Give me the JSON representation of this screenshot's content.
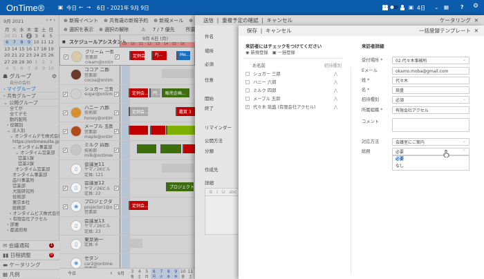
{
  "header": {
    "logo": "OnTime®",
    "today": "今日",
    "prev": "←",
    "next": "→",
    "range": "6日 - 2021年 9月 9日",
    "view": "4日",
    "help": "?",
    "colors": {
      "bar": "#0b5cad"
    }
  },
  "calendar": {
    "month": "9月 2021",
    "nav": "‹ • ›",
    "weekdays": [
      "月",
      "火",
      "水",
      "木",
      "金",
      "土",
      "日"
    ],
    "weeks": [
      [
        "30",
        "31",
        "1",
        "2",
        "3",
        "4",
        "5"
      ],
      [
        "6",
        "7",
        "8",
        "9",
        "10",
        "11",
        "12"
      ],
      [
        "13",
        "14",
        "15",
        "16",
        "17",
        "18",
        "19"
      ],
      [
        "20",
        "21",
        "22",
        "23",
        "24",
        "25",
        "26"
      ],
      [
        "27",
        "28",
        "29",
        "30",
        "1",
        "2",
        "3"
      ],
      [
        "4",
        "5",
        "6",
        "7",
        "8",
        "9",
        "10"
      ]
    ],
    "today": "2"
  },
  "groups": {
    "title": "グループ",
    "subtitle": "自分の会社",
    "tree": [
      "› マイグループ",
      "› 共有グループ",
      "⌄ 公開グループ",
      "全てが",
      "全てデモ",
      "動的配布",
      "› 役職別",
      "⌄ 法人別",
      "⌄ オンタイムデモ株式会社",
      "https://ontimesuite.jp/s...",
      "⌄ オンタイム事業部",
      "⌄ オンタイム営業部",
      "営業1課",
      "営業2課",
      "オンタイム営業部",
      "オンタイム事業部",
      "品川事業所",
      "営業部",
      "大阪研究所",
      "技術部",
      "東京本社",
      "総務部",
      "› オンタイムビズ株式会社",
      "› 有限会社アクセル",
      "› 部署",
      "› 都道府県"
    ]
  },
  "side_buttons": [
    {
      "label": "会議通知",
      "badge": "1"
    },
    {
      "label": "日程調整",
      "badge": "0"
    },
    {
      "label": "ケータリング"
    },
    {
      "label": "凡例"
    }
  ],
  "toolbar": {
    "row1": [
      "⊕ 新規イベント",
      "⊕ 共有歳の新規予約",
      "⊕ 新規メール",
      "⊕ PDF出力"
    ],
    "row2": [
      "⊕ 選択を表示",
      "⊕ 選択の解除"
    ],
    "count": "7 / 7 優先",
    "filter": "所要時間"
  },
  "schedule": {
    "title": "スケジュールアシスタント",
    "date": "9月 6日 (月)",
    "hours": [
      "09",
      "10",
      "11",
      "12",
      "13",
      "14",
      "15",
      "16"
    ],
    "rows": [
      {
        "name": "クリーム 一郎",
        "dept": "営業部",
        "mail": "cream@ontimede...",
        "checked": true,
        "events": [
          {
            "label": "定例会...",
            "color": "#c00000"
          },
          {
            "label": "Pj...",
            "color": "#c00000"
          },
          {
            "label": "Me...",
            "color": "#1a6fc0"
          }
        ]
      },
      {
        "name": "ココア 二郎",
        "dept": "営業部",
        "mail": "cocoa@ontimedem...",
        "checked": false,
        "events": []
      },
      {
        "name": "シュガー 三郎",
        "dept": "",
        "mail": "sugar@ontimedem...",
        "checked": true,
        "events": [
          {
            "label": "定例会...",
            "color": "#c00000"
          },
          {
            "label": "円...",
            "color": "#aaaaaa"
          },
          {
            "label": "販売企画...",
            "color": "#3c6e10"
          }
        ]
      },
      {
        "name": "ハニー 六郎",
        "dept": "技術部",
        "mail": "honey@ontimede...",
        "checked": true,
        "events": [
          {
            "label": "定例会...",
            "color": "#aaaaaa"
          },
          {
            "label": "鑑賞 3",
            "color": "#c00000"
          }
        ]
      },
      {
        "name": "メープル 五郎",
        "dept": "営業部",
        "mail": "maple@ontimede...",
        "checked": true,
        "events": [
          {
            "label": "",
            "color": "#c00000"
          },
          {
            "label": "",
            "color": "#c00000"
          },
          {
            "label": "",
            "color": "#7db000"
          }
        ]
      },
      {
        "name": "ミルク 四郎",
        "dept": "技術部",
        "mail": "milk@ontimedemo...",
        "checked": true,
        "events": [
          {
            "label": "",
            "color": "#3c6e10"
          },
          {
            "label": "",
            "color": "#3c6e10"
          },
          {
            "label": "",
            "color": "#c00000"
          }
        ]
      },
      {
        "name": "会議室11",
        "dept": "ヤマノ26ビル",
        "mail": "定員: 121",
        "checked": false,
        "events": []
      },
      {
        "name": "会議室12",
        "dept": "ヤマノ26ビル",
        "mail": "定員: 22",
        "checked": true,
        "events": [
          {
            "label": "プロジェクトX",
            "color": "#3c6e10"
          }
        ]
      },
      {
        "name": "プロジェクタ1",
        "dept": "projector1@ontime...",
        "mail": "営業部",
        "checked": true,
        "events": [
          {
            "label": "定例会...",
            "color": "#c00000"
          }
        ]
      },
      {
        "name": "会議室13",
        "dept": "ヤマノ26ビル",
        "mail": "定員: 23",
        "checked": false,
        "events": []
      },
      {
        "name": "東京第一",
        "dept": "",
        "mail": "定員: 6",
        "checked": false,
        "events": []
      },
      {
        "name": "セダン",
        "dept": "car2@ontimedemo...",
        "mail": "営業部",
        "checked": false,
        "events": []
      },
      {
        "name": "プロジェクタ2",
        "dept": "projector2@ontime...",
        "mail": "営業部",
        "checked": false,
        "events": []
      }
    ]
  },
  "footer": {
    "today": "今日",
    "prev": "‹",
    "month": "9月",
    "days": [
      [
        "3",
        "金"
      ],
      [
        "4",
        "土"
      ],
      [
        "5",
        "日"
      ],
      [
        "6",
        "月"
      ],
      [
        "7",
        "火"
      ],
      [
        "8",
        "水"
      ],
      [
        "9",
        "木"
      ],
      [
        "10",
        "金"
      ],
      [
        "11",
        "土"
      ]
    ]
  },
  "catering": {
    "actions": [
      "送信",
      "重複予定の確認",
      "キャンセル"
    ],
    "title": "ケータリング",
    "close": "✕",
    "labels": [
      "件名",
      "場所",
      "必須",
      "任意",
      "開始",
      "終了",
      "リマインダー",
      "公開方法",
      "分類",
      "作成先",
      "詳細"
    ],
    "editor": [
      "B",
      "I",
      "U",
      "abc"
    ]
  },
  "template": {
    "actions": [
      "保存",
      "キャンセル"
    ],
    "title": "一括登録テンプレート",
    "close": "✕",
    "list_title": "来訪者にはチェックをつけてください",
    "modes": [
      "新規登録",
      "一括登録"
    ],
    "col_name": "お名前",
    "col_type": "招待種別",
    "visitors": [
      {
        "name": "シュガー 三郎",
        "checked": false
      },
      {
        "name": "ハニー 六郎",
        "checked": false
      },
      {
        "name": "ミルク 四郎",
        "checked": false
      },
      {
        "name": "メープル 五郎",
        "checked": false
      },
      {
        "name": "代々木 琉盛 (有限会社アクセル)",
        "checked": true
      }
    ],
    "detail_title": "来訪者詳細",
    "fields": [
      {
        "label": "受付場所 *",
        "value": "02.代々木事務所",
        "type": "select"
      },
      {
        "label": "Eメール",
        "value": "okamo.moba@gmail.com",
        "type": "text"
      },
      {
        "label": "姓 *",
        "value": "代々木",
        "type": "text"
      },
      {
        "label": "名 *",
        "value": "琉盛",
        "type": "text"
      },
      {
        "label": "招待種別",
        "value": "必須",
        "type": "select"
      },
      {
        "label": "所属組織 *",
        "value": "有限会社アクセル",
        "type": "text"
      },
      {
        "label": "コメント",
        "value": "",
        "type": "textarea"
      },
      {
        "label": "対応方法",
        "value": "会議室にご案内",
        "type": "select"
      },
      {
        "label": "総務",
        "value": "必要",
        "type": "select-open"
      }
    ],
    "options": [
      "必要",
      "なし"
    ]
  }
}
